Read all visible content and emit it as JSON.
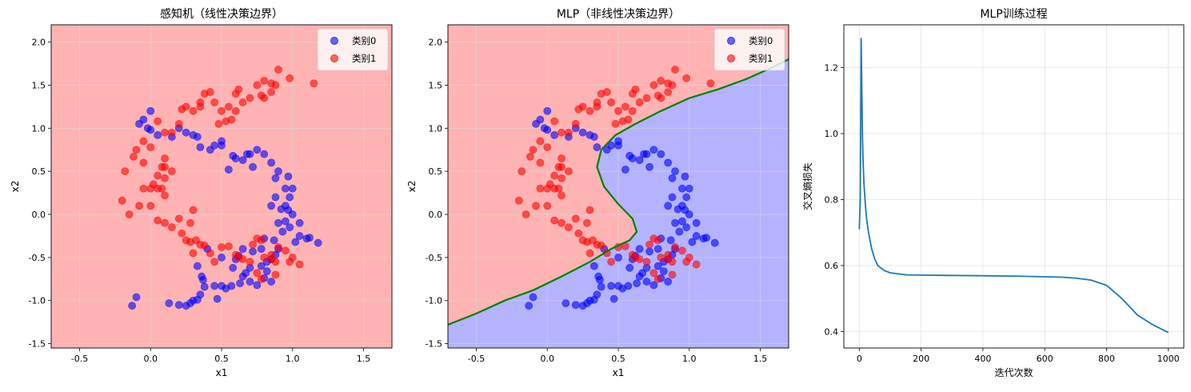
{
  "colors": {
    "class0": "#0000ff",
    "class1": "#ff0000",
    "region0": "#b3b3ff",
    "region1": "#ffb3b3",
    "boundary": "#008000",
    "loss_line": "#1f77b4",
    "grid": "#d9d9d9"
  },
  "chart_data": [
    {
      "type": "scatter",
      "title": "感知机（线性决策边界）",
      "xlabel": "x1",
      "ylabel": "x2",
      "xlim": [
        -0.7,
        1.7
      ],
      "ylim": [
        -1.55,
        2.2
      ],
      "xticks": [
        -0.5,
        0.0,
        0.5,
        1.0,
        1.5
      ],
      "yticks": [
        -1.5,
        -1.0,
        -0.5,
        0.0,
        0.5,
        1.0,
        1.5,
        2.0
      ],
      "grid": true,
      "legend_position": "top-right",
      "background_region": "class1",
      "decision_boundary": [],
      "series": [
        {
          "name": "类别0",
          "color_key": "class0",
          "points": [
            [
              -0.13,
              -1.06
            ],
            [
              -0.1,
              -0.96
            ],
            [
              0.13,
              -1.03
            ],
            [
              0.2,
              -1.05
            ],
            [
              0.25,
              -1.06
            ],
            [
              0.28,
              -1.03
            ],
            [
              0.3,
              -1.0
            ],
            [
              0.33,
              -0.99
            ],
            [
              0.35,
              -0.93
            ],
            [
              0.38,
              -0.84
            ],
            [
              0.37,
              -0.76
            ],
            [
              0.45,
              -0.83
            ],
            [
              0.5,
              -0.83
            ],
            [
              0.53,
              -0.86
            ],
            [
              0.47,
              -0.98
            ],
            [
              0.57,
              -0.83
            ],
            [
              0.63,
              -0.8
            ],
            [
              0.67,
              -0.68
            ],
            [
              0.65,
              -0.72
            ],
            [
              0.7,
              -0.78
            ],
            [
              0.75,
              -0.82
            ],
            [
              0.8,
              -0.74
            ],
            [
              0.85,
              -0.52
            ],
            [
              0.88,
              -0.47
            ],
            [
              0.78,
              -0.6
            ],
            [
              0.82,
              -0.55
            ],
            [
              0.9,
              -0.4
            ],
            [
              0.93,
              -0.2
            ],
            [
              0.95,
              -0.08
            ],
            [
              0.92,
              0.06
            ],
            [
              0.98,
              0.2
            ],
            [
              1.0,
              0.3
            ],
            [
              0.95,
              0.3
            ],
            [
              0.97,
              0.44
            ],
            [
              0.9,
              0.5
            ],
            [
              0.85,
              0.6
            ],
            [
              0.8,
              0.7
            ],
            [
              0.75,
              0.75
            ],
            [
              0.7,
              0.7
            ],
            [
              0.68,
              0.7
            ],
            [
              0.72,
              0.55
            ],
            [
              0.65,
              0.63
            ],
            [
              0.6,
              0.65
            ],
            [
              0.58,
              0.68
            ],
            [
              0.55,
              0.52
            ],
            [
              0.5,
              0.8
            ],
            [
              0.5,
              0.85
            ],
            [
              0.45,
              0.8
            ],
            [
              0.42,
              0.75
            ],
            [
              0.35,
              0.78
            ],
            [
              0.33,
              0.9
            ],
            [
              0.3,
              0.92
            ],
            [
              0.25,
              0.95
            ],
            [
              0.2,
              1.0
            ],
            [
              0.15,
              0.9
            ],
            [
              0.05,
              0.92
            ],
            [
              0.0,
              0.98
            ],
            [
              -0.05,
              1.1
            ],
            [
              -0.08,
              1.05
            ],
            [
              0.0,
              1.2
            ],
            [
              -0.02,
              1.0
            ],
            [
              1.05,
              -0.25
            ],
            [
              1.1,
              -0.28
            ],
            [
              1.12,
              -0.27
            ],
            [
              1.18,
              -0.33
            ],
            [
              1.05,
              -0.1
            ],
            [
              1.0,
              0.0
            ],
            [
              0.98,
              -0.15
            ],
            [
              1.02,
              -0.32
            ],
            [
              0.78,
              -0.4
            ],
            [
              0.72,
              -0.43
            ],
            [
              0.8,
              -0.28
            ],
            [
              0.87,
              -0.3
            ],
            [
              0.85,
              0.1
            ],
            [
              0.88,
              0.2
            ],
            [
              0.9,
              -0.1
            ],
            [
              0.33,
              -0.6
            ],
            [
              0.36,
              -0.72
            ],
            [
              0.62,
              -0.48
            ],
            [
              0.6,
              -0.52
            ],
            [
              0.58,
              -0.62
            ],
            [
              0.88,
              0.42
            ],
            [
              0.7,
              -0.62
            ],
            [
              0.82,
              -0.66
            ],
            [
              0.85,
              -0.78
            ],
            [
              0.95,
              0.1
            ],
            [
              0.97,
              0.05
            ],
            [
              0.65,
              -0.4
            ],
            [
              0.5,
              -0.5
            ],
            [
              0.4,
              -0.4
            ]
          ]
        },
        {
          "name": "类别1",
          "color_key": "class1",
          "points": [
            [
              -0.2,
              0.16
            ],
            [
              -0.18,
              0.5
            ],
            [
              -0.12,
              0.67
            ],
            [
              -0.1,
              0.75
            ],
            [
              -0.05,
              0.6
            ],
            [
              0.0,
              0.3
            ],
            [
              0.02,
              0.35
            ],
            [
              0.0,
              0.1
            ],
            [
              0.05,
              0.3
            ],
            [
              0.08,
              0.55
            ],
            [
              0.1,
              0.42
            ],
            [
              0.08,
              0.3
            ],
            [
              0.05,
              -0.07
            ],
            [
              0.1,
              -0.1
            ],
            [
              0.15,
              -0.15
            ],
            [
              0.2,
              -0.05
            ],
            [
              0.22,
              -0.22
            ],
            [
              0.25,
              -0.3
            ],
            [
              0.28,
              -0.32
            ],
            [
              0.32,
              -0.3
            ],
            [
              0.3,
              -0.45
            ],
            [
              0.35,
              -0.35
            ],
            [
              0.38,
              -0.36
            ],
            [
              0.42,
              -0.45
            ],
            [
              0.45,
              -0.55
            ],
            [
              0.5,
              -0.38
            ],
            [
              0.55,
              -0.37
            ],
            [
              0.6,
              -0.47
            ],
            [
              0.62,
              -0.5
            ],
            [
              0.65,
              -0.52
            ],
            [
              0.7,
              -0.55
            ],
            [
              0.72,
              -0.35
            ],
            [
              0.75,
              -0.28
            ],
            [
              0.78,
              -0.3
            ],
            [
              0.8,
              -0.5
            ],
            [
              0.85,
              -0.52
            ],
            [
              0.88,
              -0.55
            ],
            [
              0.9,
              -0.38
            ],
            [
              0.95,
              -0.42
            ],
            [
              0.98,
              -0.55
            ],
            [
              1.0,
              -0.5
            ],
            [
              1.05,
              -0.58
            ],
            [
              0.88,
              -0.7
            ],
            [
              0.78,
              -0.75
            ],
            [
              0.75,
              -0.68
            ],
            [
              0.85,
              -0.47
            ],
            [
              -0.05,
              0.85
            ],
            [
              0.0,
              0.78
            ],
            [
              0.05,
              1.08
            ],
            [
              0.1,
              0.95
            ],
            [
              0.15,
              0.95
            ],
            [
              0.2,
              1.05
            ],
            [
              0.22,
              1.22
            ],
            [
              0.25,
              1.25
            ],
            [
              0.3,
              1.2
            ],
            [
              0.35,
              1.3
            ],
            [
              0.38,
              1.4
            ],
            [
              0.42,
              1.42
            ],
            [
              0.45,
              1.3
            ],
            [
              0.5,
              1.2
            ],
            [
              0.55,
              1.25
            ],
            [
              0.6,
              1.4
            ],
            [
              0.62,
              1.45
            ],
            [
              0.65,
              1.3
            ],
            [
              0.7,
              1.35
            ],
            [
              0.75,
              1.5
            ],
            [
              0.8,
              1.55
            ],
            [
              0.85,
              1.52
            ],
            [
              0.88,
              1.5
            ],
            [
              0.9,
              1.68
            ],
            [
              0.98,
              1.58
            ],
            [
              1.15,
              1.52
            ],
            [
              0.1,
              0.65
            ],
            [
              0.1,
              0.55
            ],
            [
              -0.08,
              0.1
            ],
            [
              -0.05,
              0.3
            ],
            [
              -0.15,
              0.0
            ],
            [
              0.35,
              1.25
            ],
            [
              0.48,
              1.05
            ],
            [
              0.53,
              1.08
            ],
            [
              0.57,
              1.1
            ],
            [
              0.6,
              1.2
            ],
            [
              0.8,
              1.35
            ],
            [
              0.85,
              1.42
            ],
            [
              0.78,
              1.38
            ],
            [
              0.1,
              0.22
            ],
            [
              0.05,
              0.45
            ],
            [
              0.3,
              0.05
            ],
            [
              0.28,
              -0.1
            ],
            [
              0.15,
              0.5
            ]
          ]
        }
      ]
    },
    {
      "type": "scatter",
      "title": "MLP（非线性决策边界）",
      "xlabel": "x1",
      "ylabel": "x2",
      "xlim": [
        -0.7,
        1.7
      ],
      "ylim": [
        -1.55,
        2.2
      ],
      "xticks": [
        -0.5,
        0.0,
        0.5,
        1.0,
        1.5
      ],
      "yticks": [
        -1.5,
        -1.0,
        -0.5,
        0.0,
        0.5,
        1.0,
        1.5,
        2.0
      ],
      "grid": true,
      "legend_position": "top-right",
      "background_region": "split",
      "decision_boundary": [
        [
          -0.7,
          -1.28
        ],
        [
          -0.5,
          -1.15
        ],
        [
          -0.3,
          -1.0
        ],
        [
          -0.1,
          -0.88
        ],
        [
          0.1,
          -0.72
        ],
        [
          0.3,
          -0.55
        ],
        [
          0.45,
          -0.4
        ],
        [
          0.58,
          -0.3
        ],
        [
          0.63,
          -0.2
        ],
        [
          0.6,
          -0.05
        ],
        [
          0.5,
          0.12
        ],
        [
          0.4,
          0.32
        ],
        [
          0.35,
          0.55
        ],
        [
          0.38,
          0.75
        ],
        [
          0.48,
          0.92
        ],
        [
          0.62,
          1.05
        ],
        [
          0.8,
          1.2
        ],
        [
          1.0,
          1.35
        ],
        [
          1.2,
          1.45
        ],
        [
          1.4,
          1.57
        ],
        [
          1.55,
          1.68
        ],
        [
          1.7,
          1.8
        ]
      ],
      "series": [
        {
          "name": "类别0",
          "color_key": "class0",
          "points": "same_as_chart_1"
        },
        {
          "name": "类别1",
          "color_key": "class1",
          "points": "same_as_chart_1"
        }
      ]
    },
    {
      "type": "line",
      "title": "MLP训练过程",
      "xlabel": "迭代次数",
      "ylabel": "交叉熵损失",
      "xlim": [
        -50,
        1050
      ],
      "ylim": [
        0.35,
        1.33
      ],
      "xticks": [
        0,
        200,
        400,
        600,
        800,
        1000
      ],
      "yticks": [
        0.4,
        0.6,
        0.8,
        1.0,
        1.2
      ],
      "grid": true,
      "series": [
        {
          "color_key": "loss_line",
          "x": [
            0,
            3,
            6,
            8,
            10,
            12,
            15,
            20,
            25,
            30,
            40,
            50,
            60,
            80,
            100,
            150,
            200,
            300,
            400,
            500,
            600,
            650,
            700,
            750,
            800,
            850,
            900,
            950,
            1000
          ],
          "y": [
            0.71,
            0.8,
            1.29,
            1.15,
            1.0,
            0.92,
            0.85,
            0.78,
            0.73,
            0.7,
            0.65,
            0.62,
            0.6,
            0.585,
            0.578,
            0.572,
            0.571,
            0.57,
            0.569,
            0.568,
            0.566,
            0.565,
            0.562,
            0.556,
            0.54,
            0.5,
            0.45,
            0.42,
            0.397
          ]
        }
      ]
    }
  ]
}
